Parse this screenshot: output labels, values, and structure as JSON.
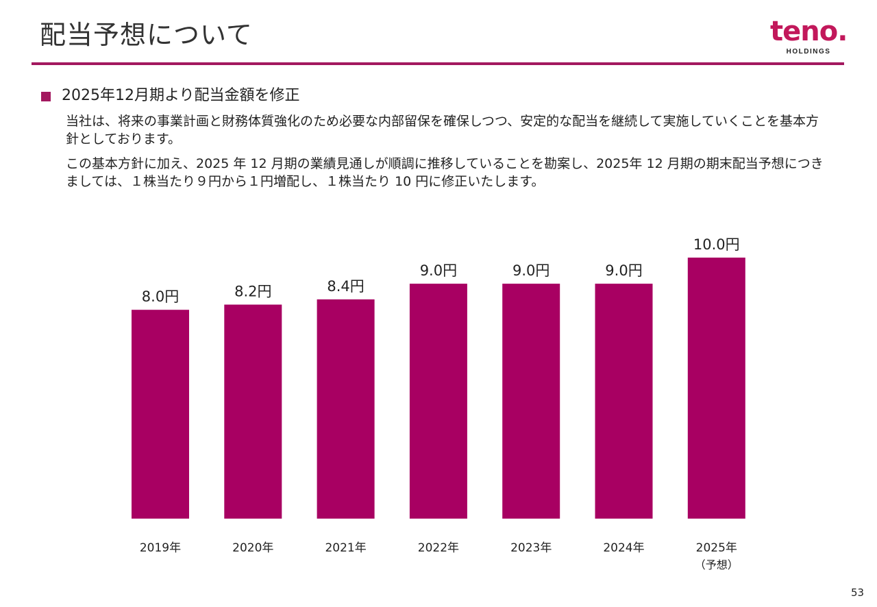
{
  "header": {
    "title": "配当予想について",
    "logo_text": "teno.",
    "logo_subtext": "HOLDINGS"
  },
  "content": {
    "bullet": "2025年12月期より配当金額を修正",
    "paragraph1": "当社は、将来の事業計画と財務体質強化のため必要な内部留保を確保しつつ、安定的な配当を継続して実施していくことを基本方針としております。",
    "paragraph2": "この基本方針に加え、2025 年 12 月期の業績見通しが順調に推移していることを勘案し、2025年 12 月期の期末配当予想につきましては、１株当たり９円から１円増配し、１株当たり 10 円に修正いたします。"
  },
  "chart_data": {
    "type": "bar",
    "categories": [
      "2019年",
      "2020年",
      "2021年",
      "2022年",
      "2023年",
      "2024年",
      "2025年"
    ],
    "category_notes": [
      "",
      "",
      "",
      "",
      "",
      "",
      "（予想）"
    ],
    "values": [
      8.0,
      8.2,
      8.4,
      9.0,
      9.0,
      9.0,
      10.0
    ],
    "data_labels": [
      "8.0円",
      "8.2円",
      "8.4円",
      "9.0円",
      "9.0円",
      "9.0円",
      "10.0円"
    ],
    "bar_color": "#a80062",
    "title": "",
    "xlabel": "",
    "ylabel": "",
    "ylim": [
      0,
      10
    ],
    "grid": false,
    "legend": "none"
  },
  "footer": {
    "page_number": "53"
  },
  "colors": {
    "accent": "#a3185f",
    "logo": "#c2185b"
  }
}
